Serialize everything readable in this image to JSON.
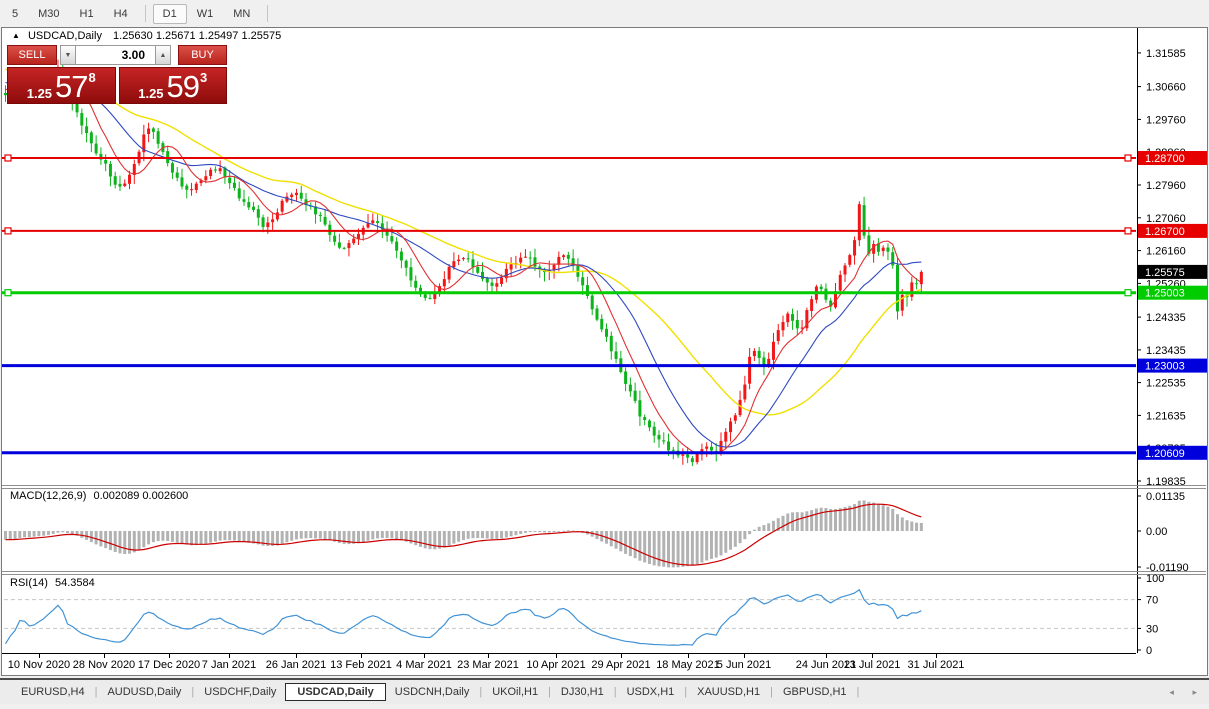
{
  "icons": {
    "collapse_marker": "▲",
    "spinner_down": "▼",
    "spinner_up": "▲",
    "tab_scroll_left": "◂",
    "tab_scroll_right": "▸"
  },
  "toolbar": {
    "timeframes": [
      "5",
      "M30",
      "H1",
      "H4",
      "D1",
      "W1",
      "MN"
    ],
    "active": "D1",
    "separators_after": [
      "H4",
      "MN"
    ]
  },
  "window": {
    "symbol_title": "USDCAD,Daily",
    "ohlc_text": "1.25630 1.25671 1.25497 1.25575"
  },
  "trade_panel": {
    "sell_label": "SELL",
    "buy_label": "BUY",
    "volume": "3.00",
    "sell_price": {
      "small": "1.25",
      "big": "57",
      "sup": "8"
    },
    "buy_price": {
      "small": "1.25",
      "big": "59",
      "sup": "3"
    }
  },
  "chart_data": {
    "type": "candlestick",
    "symbol": "USDCAD",
    "timeframe": "Daily",
    "ohlc_display": {
      "open": "1.25630",
      "high": "1.25671",
      "low": "1.25497",
      "close": "1.25575"
    },
    "current_price": 1.25575,
    "up_color": "#f21616",
    "down_color": "#0db31b",
    "ylim": [
      1.1975,
      1.3194
    ],
    "price_axis_ticks": [
      "1.31585",
      "1.30660",
      "1.29760",
      "1.28860",
      "1.27960",
      "1.27060",
      "1.26160",
      "1.25260",
      "1.24335",
      "1.23435",
      "1.22535",
      "1.21635",
      "1.20735",
      "1.19835"
    ],
    "horizontal_lines": [
      {
        "price": 1.287,
        "label": "1.28700",
        "color": "#e60000",
        "width": 2,
        "handles": true
      },
      {
        "price": 1.267,
        "label": "1.26700",
        "color": "#e60000",
        "width": 2,
        "handles": true
      },
      {
        "price": 1.25003,
        "label": "1.25003",
        "color": "#00cc00",
        "width": 3,
        "handles": true
      },
      {
        "price": 1.23003,
        "label": "1.23003",
        "color": "#0000dd",
        "width": 3,
        "handles": false
      },
      {
        "price": 1.20609,
        "label": "1.20609",
        "color": "#0000dd",
        "width": 3,
        "handles": false
      }
    ],
    "x_axis_dates": [
      "10 Nov 2020",
      "28 Nov 2020",
      "17 Dec 2020",
      "7 Jan 2021",
      "26 Jan 2021",
      "13 Feb 2021",
      "4 Mar 2021",
      "23 Mar 2021",
      "10 Apr 2021",
      "29 Apr 2021",
      "18 May 2021",
      "5 Jun 2021",
      "24 Jun 2021",
      "13 Jul 2021",
      "31 Jul 2021"
    ],
    "x_axis_tick_x": [
      39,
      104,
      169,
      229,
      296,
      361,
      424,
      488,
      556,
      621,
      688,
      744,
      826,
      872,
      936
    ],
    "candle_count": 193,
    "x_start": 4,
    "x_step": 4.77,
    "price_path_anchors": [
      [
        0,
        1.304
      ],
      [
        18,
        1.3075
      ],
      [
        35,
        1.306
      ],
      [
        50,
        1.3095
      ],
      [
        58,
        1.3118
      ],
      [
        66,
        1.305
      ],
      [
        78,
        1.2975
      ],
      [
        90,
        1.291
      ],
      [
        102,
        1.286
      ],
      [
        112,
        1.28
      ],
      [
        122,
        1.2785
      ],
      [
        132,
        1.2855
      ],
      [
        142,
        1.2925
      ],
      [
        148,
        1.2962
      ],
      [
        156,
        1.2905
      ],
      [
        166,
        1.2858
      ],
      [
        176,
        1.2808
      ],
      [
        186,
        1.278
      ],
      [
        196,
        1.28
      ],
      [
        206,
        1.283
      ],
      [
        216,
        1.2845
      ],
      [
        226,
        1.281
      ],
      [
        236,
        1.277
      ],
      [
        246,
        1.274
      ],
      [
        256,
        1.2708
      ],
      [
        264,
        1.2675
      ],
      [
        272,
        1.271
      ],
      [
        280,
        1.2745
      ],
      [
        290,
        1.2775
      ],
      [
        300,
        1.276
      ],
      [
        310,
        1.2735
      ],
      [
        320,
        1.27
      ],
      [
        330,
        1.2655
      ],
      [
        340,
        1.262
      ],
      [
        350,
        1.264
      ],
      [
        360,
        1.267
      ],
      [
        370,
        1.2695
      ],
      [
        380,
        1.268
      ],
      [
        390,
        1.264
      ],
      [
        400,
        1.259
      ],
      [
        410,
        1.253
      ],
      [
        420,
        1.249
      ],
      [
        430,
        1.248
      ],
      [
        440,
        1.2525
      ],
      [
        450,
        1.2575
      ],
      [
        460,
        1.2605
      ],
      [
        470,
        1.2575
      ],
      [
        480,
        1.2545
      ],
      [
        490,
        1.2515
      ],
      [
        500,
        1.2545
      ],
      [
        510,
        1.2575
      ],
      [
        520,
        1.26
      ],
      [
        530,
        1.259
      ],
      [
        540,
        1.2555
      ],
      [
        550,
        1.2572
      ],
      [
        560,
        1.26
      ],
      [
        570,
        1.258
      ],
      [
        580,
        1.2525
      ],
      [
        590,
        1.2465
      ],
      [
        600,
        1.2405
      ],
      [
        610,
        1.2345
      ],
      [
        620,
        1.228
      ],
      [
        630,
        1.222
      ],
      [
        640,
        1.2158
      ],
      [
        650,
        1.212
      ],
      [
        660,
        1.209
      ],
      [
        670,
        1.2068
      ],
      [
        680,
        1.2058
      ],
      [
        690,
        1.204
      ],
      [
        698,
        1.2065
      ],
      [
        706,
        1.2078
      ],
      [
        714,
        1.2058
      ],
      [
        722,
        1.2105
      ],
      [
        730,
        1.215
      ],
      [
        738,
        1.2195
      ],
      [
        744,
        1.226
      ],
      [
        750,
        1.2355
      ],
      [
        756,
        1.233
      ],
      [
        762,
        1.2295
      ],
      [
        768,
        1.2325
      ],
      [
        774,
        1.2375
      ],
      [
        780,
        1.2415
      ],
      [
        786,
        1.2445
      ],
      [
        792,
        1.242
      ],
      [
        798,
        1.2385
      ],
      [
        804,
        1.2445
      ],
      [
        810,
        1.2485
      ],
      [
        816,
        1.2525
      ],
      [
        822,
        1.249
      ],
      [
        828,
        1.2455
      ],
      [
        834,
        1.2505
      ],
      [
        840,
        1.2555
      ],
      [
        846,
        1.2595
      ],
      [
        852,
        1.2625
      ],
      [
        856,
        1.27
      ],
      [
        859,
        1.2768
      ],
      [
        862,
        1.266
      ],
      [
        866,
        1.26
      ],
      [
        872,
        1.263
      ],
      [
        878,
        1.2615
      ],
      [
        884,
        1.262
      ],
      [
        890,
        1.26
      ],
      [
        893,
        1.252
      ],
      [
        895,
        1.2448
      ],
      [
        899,
        1.247
      ],
      [
        903,
        1.251
      ],
      [
        907,
        1.2485
      ],
      [
        911,
        1.2545
      ],
      [
        915,
        1.253
      ],
      [
        922,
        1.2557
      ]
    ],
    "moving_averages": [
      {
        "name": "ma-slow-yellow",
        "window": 34,
        "color": "#f0e000"
      },
      {
        "name": "ma-mid-blue",
        "window": 17,
        "color": "#2f49c0"
      },
      {
        "name": "ma-fast-red",
        "window": 8,
        "color": "#e03232"
      }
    ],
    "indicators": {
      "macd": {
        "title": "MACD(12,26,9)",
        "values_text": "0.002089 0.002600",
        "main": 0.002089,
        "signal": 0.0026,
        "axis_ticks": [
          "0.01135",
          "0.00",
          "-0.01190"
        ],
        "histogram_color": "#b2b2b2",
        "signal_color": "#cc0000"
      },
      "rsi": {
        "title": "RSI(14)",
        "values_text": "54.3584",
        "value": 54.3584,
        "axis_ticks": [
          "100",
          "70",
          "30",
          "0"
        ],
        "levels": [
          70,
          30
        ],
        "line_color": "#4193d6",
        "level_color": "#c6c6c6"
      }
    }
  },
  "tabs": {
    "items": [
      "EURUSD,H4",
      "AUDUSD,Daily",
      "USDCHF,Daily",
      "USDCAD,Daily",
      "USDCNH,Daily",
      "UKOil,H1",
      "DJ30,H1",
      "USDX,H1",
      "XAUUSD,H1",
      "GBPUSD,H1"
    ],
    "active": "USDCAD,Daily"
  }
}
